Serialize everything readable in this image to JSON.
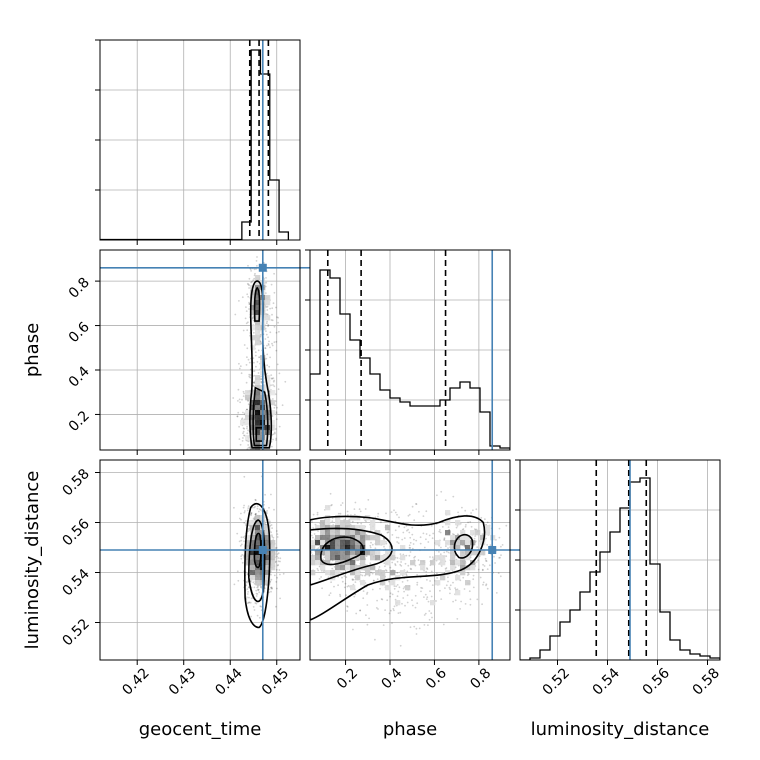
{
  "chart_data": {
    "type": "corner",
    "parameters": [
      "geocent_time",
      "phase",
      "luminosity_distance"
    ],
    "truths": {
      "geocent_time": 0.447,
      "phase": 0.86,
      "luminosity_distance": 0.549
    },
    "colors": {
      "truth": "#4682b4",
      "contour": "#000000",
      "grid": "#b0b0b0"
    },
    "grid": true,
    "axes": {
      "geocent_time": {
        "range": [
          0.412,
          0.455
        ],
        "ticks": [
          0.42,
          0.43,
          0.44,
          0.45
        ],
        "tick_labels": [
          "0.42",
          "0.43",
          "0.44",
          "0.45"
        ]
      },
      "phase": {
        "range": [
          0.04,
          0.94
        ],
        "ticks": [
          0.2,
          0.4,
          0.6,
          0.8
        ],
        "tick_labels": [
          "0.2",
          "0.4",
          "0.6",
          "0.8"
        ]
      },
      "luminosity_distance": {
        "range": [
          0.505,
          0.585
        ],
        "ticks": [
          0.52,
          0.54,
          0.56,
          0.58
        ],
        "tick_labels": [
          "0.52",
          "0.54",
          "0.56",
          "0.58"
        ]
      }
    },
    "marginals": {
      "geocent_time": {
        "bin_edges": [
          0.4425,
          0.4445,
          0.4465,
          0.4485,
          0.4505,
          0.4525
        ],
        "counts": [
          0.09,
          0.95,
          0.83,
          0.3,
          0.04
        ],
        "quantile_lines": [
          0.4442,
          0.4462,
          0.4482
        ],
        "ylim": [
          0,
          1.0
        ]
      },
      "phase": {
        "bin_edges": [
          0.04,
          0.085,
          0.13,
          0.175,
          0.22,
          0.265,
          0.31,
          0.355,
          0.4,
          0.445,
          0.49,
          0.535,
          0.58,
          0.625,
          0.67,
          0.715,
          0.76,
          0.805,
          0.85,
          0.895,
          0.94
        ],
        "counts": [
          0.38,
          0.9,
          0.86,
          0.68,
          0.55,
          0.46,
          0.38,
          0.3,
          0.26,
          0.24,
          0.22,
          0.22,
          0.22,
          0.25,
          0.31,
          0.34,
          0.31,
          0.19,
          0.02,
          0.01
        ],
        "quantile_lines": [
          0.12,
          0.27,
          0.65
        ],
        "ylim": [
          0,
          1.0
        ]
      },
      "luminosity_distance": {
        "bin_edges": [
          0.505,
          0.509,
          0.513,
          0.517,
          0.521,
          0.525,
          0.529,
          0.533,
          0.537,
          0.541,
          0.545,
          0.549,
          0.553,
          0.557,
          0.561,
          0.565,
          0.569,
          0.573,
          0.577,
          0.581,
          0.585
        ],
        "counts": [
          0.0,
          0.01,
          0.05,
          0.12,
          0.19,
          0.25,
          0.34,
          0.44,
          0.54,
          0.64,
          0.76,
          0.89,
          0.91,
          0.48,
          0.24,
          0.1,
          0.05,
          0.03,
          0.02,
          0.01
        ],
        "quantile_lines": [
          0.5355,
          0.5485,
          0.5555
        ],
        "ylim": [
          0,
          1.0
        ]
      }
    }
  }
}
